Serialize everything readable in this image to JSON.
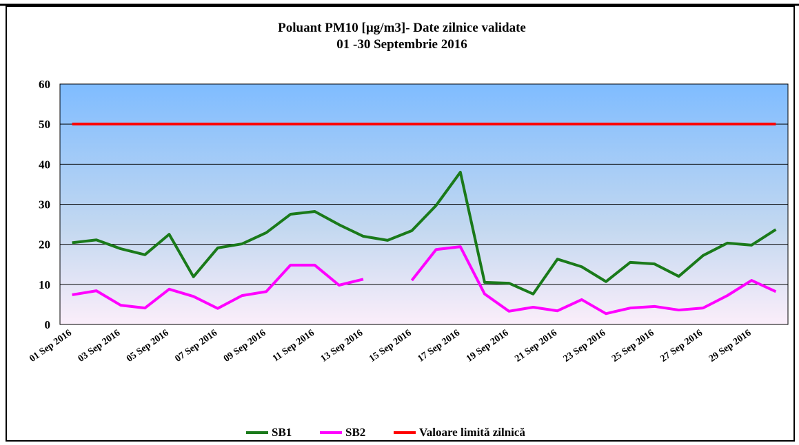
{
  "chart_data": {
    "type": "line",
    "title": "Poluant PM10 [µg/m3]- Date zilnice validate",
    "subtitle": "01 -30 Septembrie 2016",
    "categories": [
      "01 Sep 2016",
      null,
      "03 Sep 2016",
      null,
      "05 Sep 2016",
      null,
      "07 Sep 2016",
      null,
      "09 Sep 2016",
      null,
      "11 Sep 2016",
      null,
      "13 Sep 2016",
      null,
      "15 Sep 2016",
      null,
      "17 Sep 2016",
      null,
      "19 Sep 2016",
      null,
      "21 Sep 2016",
      null,
      "23 Sep 2016",
      null,
      "25 Sep 2016",
      null,
      "27 Sep 2016",
      null,
      "29 Sep 2016",
      null
    ],
    "series": [
      {
        "name": "SB1",
        "color": "#1a7a1a",
        "values": [
          20.4,
          21.1,
          18.9,
          17.4,
          22.5,
          11.9,
          19.1,
          20.1,
          22.9,
          27.5,
          28.2,
          24.9,
          22.0,
          21.0,
          23.4,
          29.7,
          38.0,
          10.5,
          10.3,
          7.6,
          16.3,
          14.4,
          10.7,
          15.5,
          15.1,
          12.0,
          17.2,
          20.3,
          19.8,
          23.7
        ]
      },
      {
        "name": "SB2",
        "color": "#ff00ff",
        "values": [
          7.4,
          8.4,
          4.8,
          4.1,
          8.8,
          7.0,
          4.0,
          7.2,
          8.2,
          14.8,
          14.8,
          9.8,
          11.3,
          null,
          11.0,
          18.7,
          19.4,
          7.6,
          3.3,
          4.3,
          3.4,
          6.2,
          2.7,
          4.1,
          4.5,
          3.6,
          4.1,
          7.2,
          11.0,
          8.2
        ]
      },
      {
        "name": "Valoare limită zilnică",
        "color": "#ff0000",
        "values": [
          50,
          50,
          50,
          50,
          50,
          50,
          50,
          50,
          50,
          50,
          50,
          50,
          50,
          50,
          50,
          50,
          50,
          50,
          50,
          50,
          50,
          50,
          50,
          50,
          50,
          50,
          50,
          50,
          50,
          50
        ]
      }
    ],
    "ylim": [
      0,
      60
    ],
    "yticks": [
      0,
      10,
      20,
      30,
      40,
      50,
      60
    ],
    "grid": true,
    "legend": "bottom"
  }
}
